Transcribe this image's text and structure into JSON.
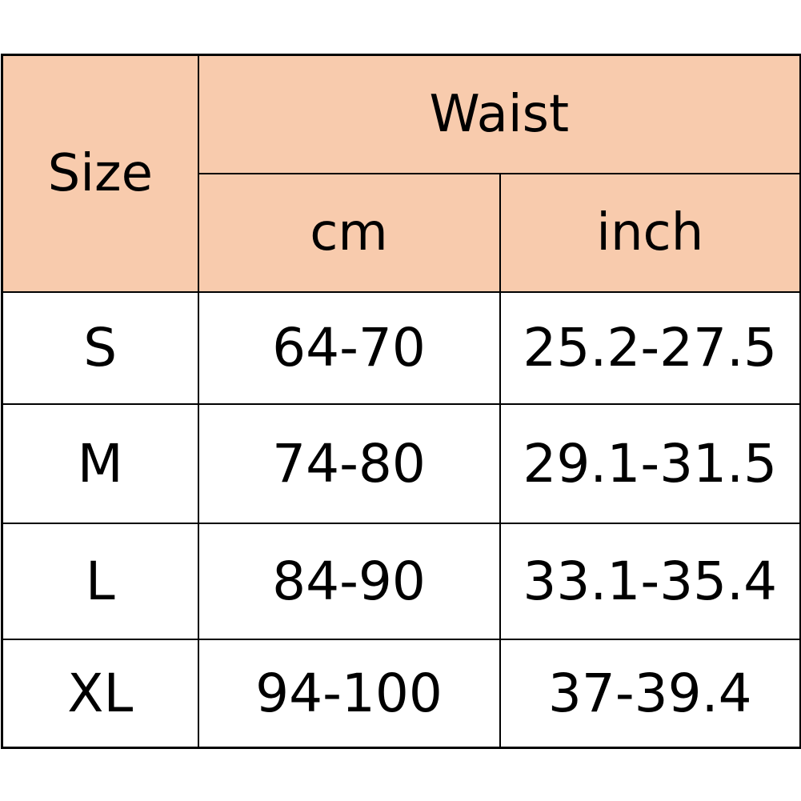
{
  "chart_data": {
    "type": "table",
    "header_fill": "#F8CBAD",
    "columns": {
      "size": "Size",
      "group": "Waist",
      "sub": [
        "cm",
        "inch"
      ]
    },
    "rows": [
      {
        "size": "S",
        "cm": "64-70",
        "inch": "25.2-27.5"
      },
      {
        "size": "M",
        "cm": "74-80",
        "inch": "29.1-31.5"
      },
      {
        "size": "L",
        "cm": "84-90",
        "inch": "33.1-35.4"
      },
      {
        "size": "XL",
        "cm": "94-100",
        "inch": "37-39.4"
      }
    ]
  }
}
